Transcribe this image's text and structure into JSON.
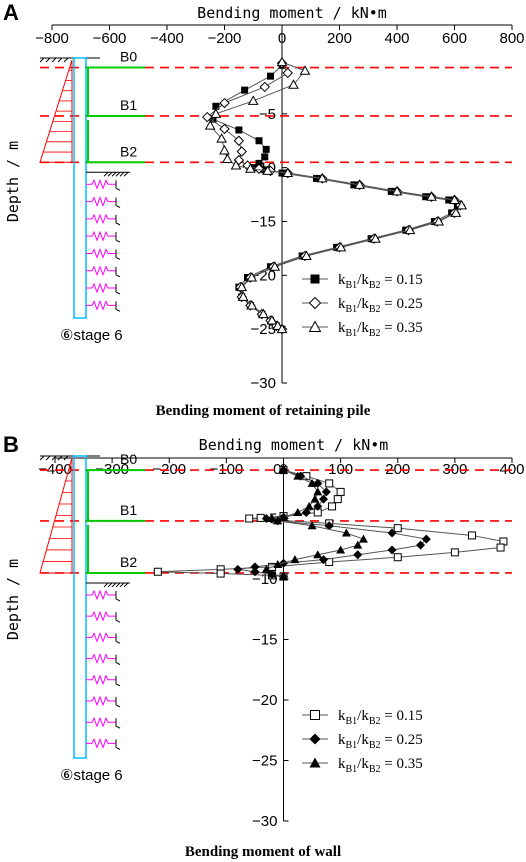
{
  "chart_data": [
    {
      "type": "line",
      "panel": "A",
      "caption": "Bending moment of retaining pile",
      "xlabel": "Bending moment / kN•m",
      "ylabel": "Depth / m",
      "xlim": [
        -800,
        800
      ],
      "ylim": [
        -30,
        0
      ],
      "xticks": [
        -800,
        -600,
        -400,
        -200,
        0,
        200,
        400,
        600,
        800
      ],
      "yticks": [
        -5,
        -10,
        -15,
        -20,
        -25,
        -30
      ],
      "support_levels": [
        -0.7,
        -5.2,
        -9.5
      ],
      "schematic": {
        "supports": [
          "B0",
          "B1",
          "B2"
        ],
        "stage": "⑥stage 6"
      },
      "legend_position": "bottom-right",
      "series": [
        {
          "name_base": "k",
          "name_sub1": "B1",
          "name_mid": "/k",
          "name_sub2": "B2",
          "name_suffix": " = 0.15",
          "marker": "filled-square",
          "x": [
            0,
            -40,
            -130,
            -230,
            -240,
            -150,
            -80,
            -55,
            -60,
            -80,
            -100,
            -60,
            0,
            120,
            250,
            380,
            500,
            580,
            610,
            590,
            530,
            430,
            310,
            190,
            70,
            -40,
            -120,
            -150,
            -140,
            -110,
            -70,
            -40,
            -20,
            0
          ],
          "y": [
            -0.5,
            -1.5,
            -2.8,
            -4.3,
            -5.5,
            -6.5,
            -7.5,
            -8.3,
            -9.0,
            -9.6,
            -10.0,
            -10.2,
            -10.5,
            -11.0,
            -11.6,
            -12.2,
            -12.7,
            -13.0,
            -13.5,
            -14.2,
            -15.0,
            -15.8,
            -16.6,
            -17.4,
            -18.2,
            -19.2,
            -20.2,
            -21.1,
            -22.0,
            -22.8,
            -23.6,
            -24.2,
            -24.7,
            -25.0
          ]
        },
        {
          "name_base": "k",
          "name_sub1": "B1",
          "name_mid": "/k",
          "name_sub2": "B2",
          "name_suffix": " = 0.25",
          "marker": "open-diamond",
          "x": [
            0,
            20,
            -60,
            -200,
            -260,
            -200,
            -150,
            -140,
            -150,
            -120,
            -80,
            -40,
            20,
            140,
            270,
            400,
            520,
            600,
            620,
            600,
            540,
            440,
            320,
            200,
            80,
            -30,
            -110,
            -145,
            -140,
            -110,
            -70,
            -40,
            -20,
            0
          ],
          "y": [
            -0.3,
            -1.2,
            -2.5,
            -4.0,
            -5.3,
            -6.4,
            -7.5,
            -8.5,
            -9.3,
            -9.8,
            -10.1,
            -10.3,
            -10.5,
            -11.0,
            -11.6,
            -12.2,
            -12.7,
            -13.0,
            -13.5,
            -14.2,
            -15.0,
            -15.8,
            -16.6,
            -17.4,
            -18.2,
            -19.2,
            -20.2,
            -21.1,
            -22.0,
            -22.8,
            -23.6,
            -24.2,
            -24.7,
            -25.0
          ]
        },
        {
          "name_base": "k",
          "name_sub1": "B1",
          "name_mid": "/k",
          "name_sub2": "B2",
          "name_suffix": " = 0.35",
          "marker": "open-triangle",
          "x": [
            0,
            80,
            40,
            -100,
            -230,
            -250,
            -210,
            -200,
            -190,
            -160,
            -110,
            -50,
            20,
            140,
            270,
            400,
            520,
            600,
            625,
            605,
            545,
            445,
            325,
            205,
            85,
            -25,
            -105,
            -140,
            -135,
            -105,
            -65,
            -35,
            -15,
            0
          ],
          "y": [
            -0.2,
            -1.0,
            -2.3,
            -3.8,
            -5.0,
            -6.1,
            -7.3,
            -8.4,
            -9.2,
            -9.8,
            -10.1,
            -10.3,
            -10.5,
            -11.0,
            -11.6,
            -12.2,
            -12.7,
            -13.0,
            -13.5,
            -14.2,
            -15.0,
            -15.8,
            -16.6,
            -17.4,
            -18.2,
            -19.2,
            -20.2,
            -21.1,
            -22.0,
            -22.8,
            -23.6,
            -24.2,
            -24.7,
            -25.0
          ]
        }
      ]
    },
    {
      "type": "line",
      "panel": "B",
      "caption": "Bending moment of wall",
      "xlabel": "Bending moment / kN•m",
      "ylabel": "Depth / m",
      "xlim": [
        -400,
        400
      ],
      "ylim": [
        -30,
        0
      ],
      "xticks": [
        -400,
        -300,
        -200,
        -100,
        0,
        100,
        200,
        300,
        400
      ],
      "yticks": [
        -5,
        -10,
        -15,
        -20,
        -25,
        -30
      ],
      "support_levels": [
        -1.0,
        -5.2,
        -9.5
      ],
      "schematic": {
        "supports": [
          "B0",
          "B1",
          "B2"
        ],
        "stage": "⑥stage 6"
      },
      "legend_position": "bottom-right",
      "series": [
        {
          "name_base": "k",
          "name_sub1": "B1",
          "name_mid": "/k",
          "name_sub2": "B2",
          "name_suffix": " = 0.15",
          "marker": "open-square",
          "x": [
            0,
            40,
            80,
            100,
            95,
            85,
            60,
            0,
            -40,
            -60,
            80,
            200,
            330,
            385,
            380,
            300,
            200,
            80,
            -20,
            -110,
            -220,
            -110,
            -20,
            0
          ],
          "y": [
            -1.0,
            -1.5,
            -2.1,
            -2.8,
            -3.4,
            -4.0,
            -4.5,
            -4.8,
            -4.95,
            -5.0,
            -5.4,
            -5.8,
            -6.4,
            -6.9,
            -7.4,
            -7.8,
            -8.2,
            -8.6,
            -9.0,
            -9.2,
            -9.4,
            -9.55,
            -9.7,
            -9.8
          ]
        },
        {
          "name_base": "k",
          "name_sub1": "B1",
          "name_mid": "/k",
          "name_sub2": "B2",
          "name_suffix": " = 0.25",
          "marker": "filled-diamond",
          "x": [
            0,
            30,
            60,
            75,
            70,
            60,
            40,
            0,
            -30,
            -10,
            80,
            190,
            250,
            240,
            190,
            130,
            70,
            0,
            -50,
            -80,
            -50,
            -20,
            0
          ],
          "y": [
            -1.0,
            -1.5,
            -2.1,
            -2.8,
            -3.4,
            -4.0,
            -4.5,
            -4.9,
            -5.0,
            -5.2,
            -5.6,
            -6.2,
            -6.7,
            -7.2,
            -7.6,
            -8.0,
            -8.4,
            -8.7,
            -9.0,
            -9.2,
            -9.4,
            -9.6,
            -9.8
          ]
        },
        {
          "name_base": "k",
          "name_sub1": "B1",
          "name_mid": "/k",
          "name_sub2": "B2",
          "name_suffix": " = 0.35",
          "marker": "filled-triangle",
          "x": [
            0,
            25,
            50,
            60,
            55,
            45,
            25,
            0,
            -20,
            -10,
            50,
            110,
            140,
            130,
            100,
            60,
            20,
            -10,
            -30,
            -20,
            0
          ],
          "y": [
            -1.0,
            -1.5,
            -2.1,
            -2.8,
            -3.4,
            -4.0,
            -4.5,
            -4.9,
            -5.0,
            -5.2,
            -5.6,
            -6.2,
            -6.7,
            -7.2,
            -7.6,
            -8.0,
            -8.4,
            -8.8,
            -9.2,
            -9.6,
            -9.8
          ]
        }
      ]
    }
  ],
  "style": {
    "axis_color": "#000000",
    "support_line_color": "#ff0000",
    "pile_color": "#00bfff",
    "strut_color": "#00cc00",
    "spring_color": "#ff00ff",
    "pressure_color": "#ff0000",
    "series_line_color": "#555555"
  }
}
